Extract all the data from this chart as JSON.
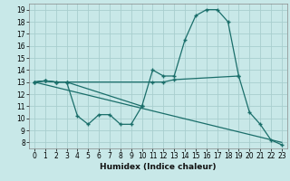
{
  "bg_color": "#c8e8e8",
  "grid_color": "#a8cece",
  "line_color": "#1a6e6a",
  "xlabel": "Humidex (Indice chaleur)",
  "xlim": [
    -0.5,
    23.5
  ],
  "ylim": [
    7.5,
    19.5
  ],
  "xticks": [
    0,
    1,
    2,
    3,
    4,
    5,
    6,
    7,
    8,
    9,
    10,
    11,
    12,
    13,
    14,
    15,
    16,
    17,
    18,
    19,
    20,
    21,
    22,
    23
  ],
  "yticks": [
    8,
    9,
    10,
    11,
    12,
    13,
    14,
    15,
    16,
    17,
    18,
    19
  ],
  "series": [
    {
      "x": [
        0,
        1,
        2,
        3,
        4,
        5,
        6,
        7,
        8,
        9,
        10
      ],
      "y": [
        13,
        13.1,
        13,
        13,
        10.2,
        9.5,
        10.3,
        10.3,
        9.5,
        9.5,
        11.0
      ],
      "marker": true
    },
    {
      "x": [
        0,
        1,
        2,
        3,
        10,
        11,
        12,
        13,
        14,
        15,
        16,
        17,
        18,
        19
      ],
      "y": [
        13,
        13.1,
        13,
        13,
        11.0,
        14.0,
        13.5,
        13.5,
        16.5,
        18.5,
        19.0,
        19.0,
        18.0,
        13.5
      ],
      "marker": true
    },
    {
      "x": [
        0,
        1,
        2,
        3,
        11,
        12,
        13,
        19,
        20,
        21,
        22,
        23
      ],
      "y": [
        13,
        13.1,
        13,
        13,
        13.0,
        13.0,
        13.2,
        13.5,
        10.5,
        9.5,
        8.2,
        7.8
      ],
      "marker": true
    },
    {
      "x": [
        0,
        23
      ],
      "y": [
        13,
        8
      ],
      "marker": false
    }
  ]
}
